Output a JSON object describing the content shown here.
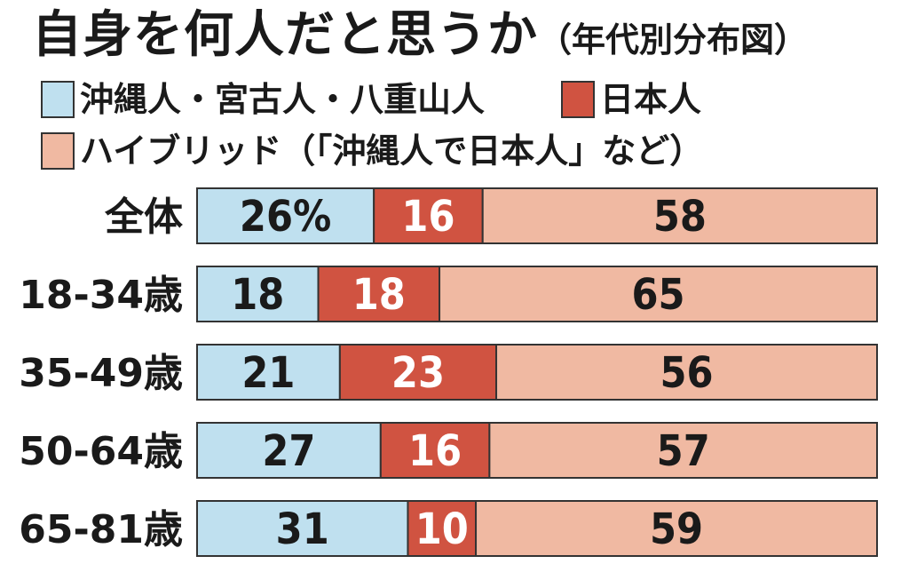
{
  "title": "自身を何人だと思うか",
  "subtitle": "（年代別分布図）",
  "colors": {
    "okinawan": "#bfe0ef",
    "japanese": "#d05341",
    "hybrid": "#f0b9a2",
    "border": "#333333"
  },
  "legend": [
    {
      "name": "沖縄人・宮古人・八重山人",
      "color": "#bfe0ef"
    },
    {
      "name": "日本人",
      "color": "#d05341"
    },
    {
      "name": "ハイブリッド（「沖縄人で日本人」など）",
      "color": "#f0b9a2"
    }
  ],
  "chart_data": {
    "type": "bar",
    "orientation": "horizontal",
    "stacked": true,
    "title": "自身を何人だと思うか",
    "subtitle": "（年代別分布図）",
    "categories": [
      "全体",
      "18-34歳",
      "35-49歳",
      "50-64歳",
      "65-81歳"
    ],
    "series": [
      {
        "name": "沖縄人・宮古人・八重山人",
        "values": [
          26,
          18,
          21,
          27,
          31
        ],
        "labels": [
          "26%",
          "18",
          "21",
          "27",
          "31"
        ]
      },
      {
        "name": "日本人",
        "values": [
          16,
          18,
          23,
          16,
          10
        ],
        "labels": [
          "16",
          "18",
          "23",
          "16",
          "10"
        ]
      },
      {
        "name": "ハイブリッド（「沖縄人で日本人」など）",
        "values": [
          58,
          65,
          56,
          57,
          59
        ],
        "labels": [
          "58",
          "65",
          "56",
          "57",
          "59"
        ]
      }
    ],
    "grid": false,
    "legend_position": "top-left"
  }
}
